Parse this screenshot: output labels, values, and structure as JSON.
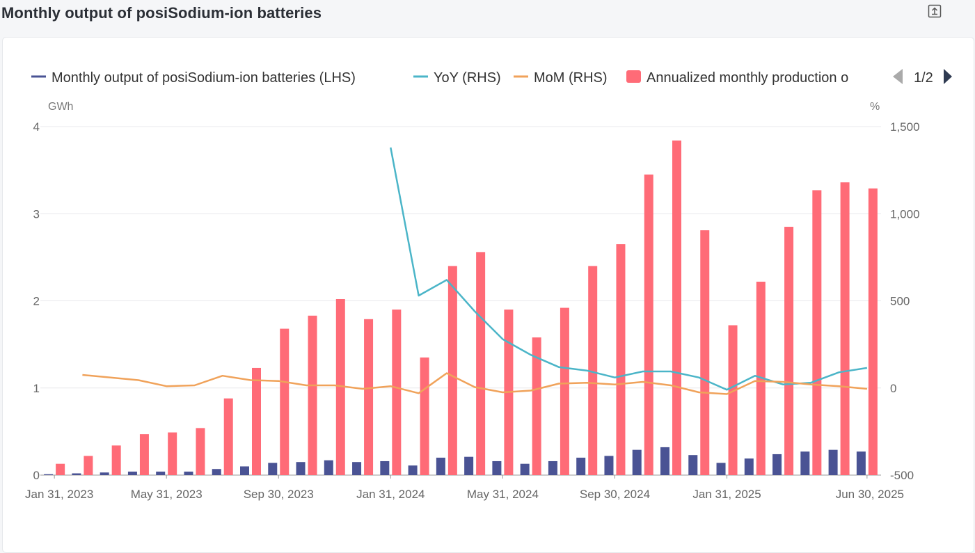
{
  "page": {
    "title": "Monthly output of posiSodium-ion batteries",
    "export_icon": "export-icon"
  },
  "legend": {
    "items": [
      {
        "label": "Monthly output of posiSodium-ion batteries (LHS)",
        "color": "#4a5394"
      },
      {
        "label": "YoY (RHS)",
        "color": "#4bb5c8"
      },
      {
        "label": "MoM (RHS)",
        "color": "#f0a25a"
      },
      {
        "label": "Annualized monthly production o",
        "color": "#ff6b77"
      }
    ],
    "page": "1/2",
    "prev_icon": "triangle-left-icon",
    "next_icon": "triangle-right-icon"
  },
  "chart_data": {
    "type": "bar",
    "left_unit": "GWh",
    "right_unit": "%",
    "y_left": {
      "ticks": [
        "0",
        "1",
        "2",
        "3",
        "4"
      ],
      "range": [
        0,
        4
      ]
    },
    "y_right": {
      "ticks": [
        "-500",
        "0",
        "500",
        "1,000",
        "1,500"
      ],
      "range": [
        -500,
        1500
      ]
    },
    "x_tick_labels": [
      "Jan 31, 2023",
      "May 31, 2023",
      "Sep 30, 2023",
      "Jan 31, 2024",
      "May 31, 2024",
      "Sep 30, 2024",
      "Jan 31, 2025",
      "Jun 30, 2025"
    ],
    "x_tick_indices": [
      0,
      4,
      8,
      12,
      16,
      20,
      24,
      29
    ],
    "categories": [
      "2023-01",
      "2023-02",
      "2023-03",
      "2023-04",
      "2023-05",
      "2023-06",
      "2023-07",
      "2023-08",
      "2023-09",
      "2023-10",
      "2023-11",
      "2023-12",
      "2024-01",
      "2024-02",
      "2024-03",
      "2024-04",
      "2024-05",
      "2024-06",
      "2024-07",
      "2024-08",
      "2024-09",
      "2024-10",
      "2024-11",
      "2024-12",
      "2025-01",
      "2025-02",
      "2025-03",
      "2025-04",
      "2025-05",
      "2025-06"
    ],
    "series": [
      {
        "name": "Monthly output of posiSodium-ion batteries (LHS)",
        "axis": "left",
        "kind": "bar",
        "values": [
          0.01,
          0.02,
          0.03,
          0.04,
          0.04,
          0.04,
          0.07,
          0.1,
          0.14,
          0.15,
          0.17,
          0.15,
          0.16,
          0.11,
          0.2,
          0.21,
          0.16,
          0.13,
          0.16,
          0.2,
          0.22,
          0.29,
          0.32,
          0.23,
          0.14,
          0.19,
          0.24,
          0.27,
          0.29,
          0.27
        ]
      },
      {
        "name": "Annualized monthly production o",
        "axis": "left",
        "kind": "bar",
        "values": [
          0.13,
          0.22,
          0.34,
          0.47,
          0.49,
          0.54,
          0.88,
          1.23,
          1.68,
          1.83,
          2.02,
          1.79,
          1.9,
          1.35,
          2.4,
          2.56,
          1.9,
          1.58,
          1.92,
          2.4,
          2.65,
          3.45,
          3.84,
          2.81,
          1.72,
          2.22,
          2.85,
          3.27,
          3.36,
          3.29
        ]
      },
      {
        "name": "YoY (RHS)",
        "axis": "right",
        "kind": "line",
        "values": [
          null,
          null,
          null,
          null,
          null,
          null,
          null,
          null,
          null,
          null,
          null,
          null,
          1380,
          530,
          620,
          440,
          280,
          190,
          120,
          100,
          60,
          95,
          95,
          60,
          -10,
          70,
          20,
          30,
          90,
          115
        ]
      },
      {
        "name": "MoM (RHS)",
        "axis": "right",
        "kind": "line",
        "values": [
          null,
          75,
          null,
          45,
          10,
          15,
          70,
          45,
          40,
          15,
          15,
          -5,
          10,
          -30,
          85,
          5,
          -25,
          -15,
          25,
          30,
          20,
          35,
          15,
          -25,
          -35,
          40,
          35,
          20,
          10,
          -5
        ]
      }
    ]
  }
}
